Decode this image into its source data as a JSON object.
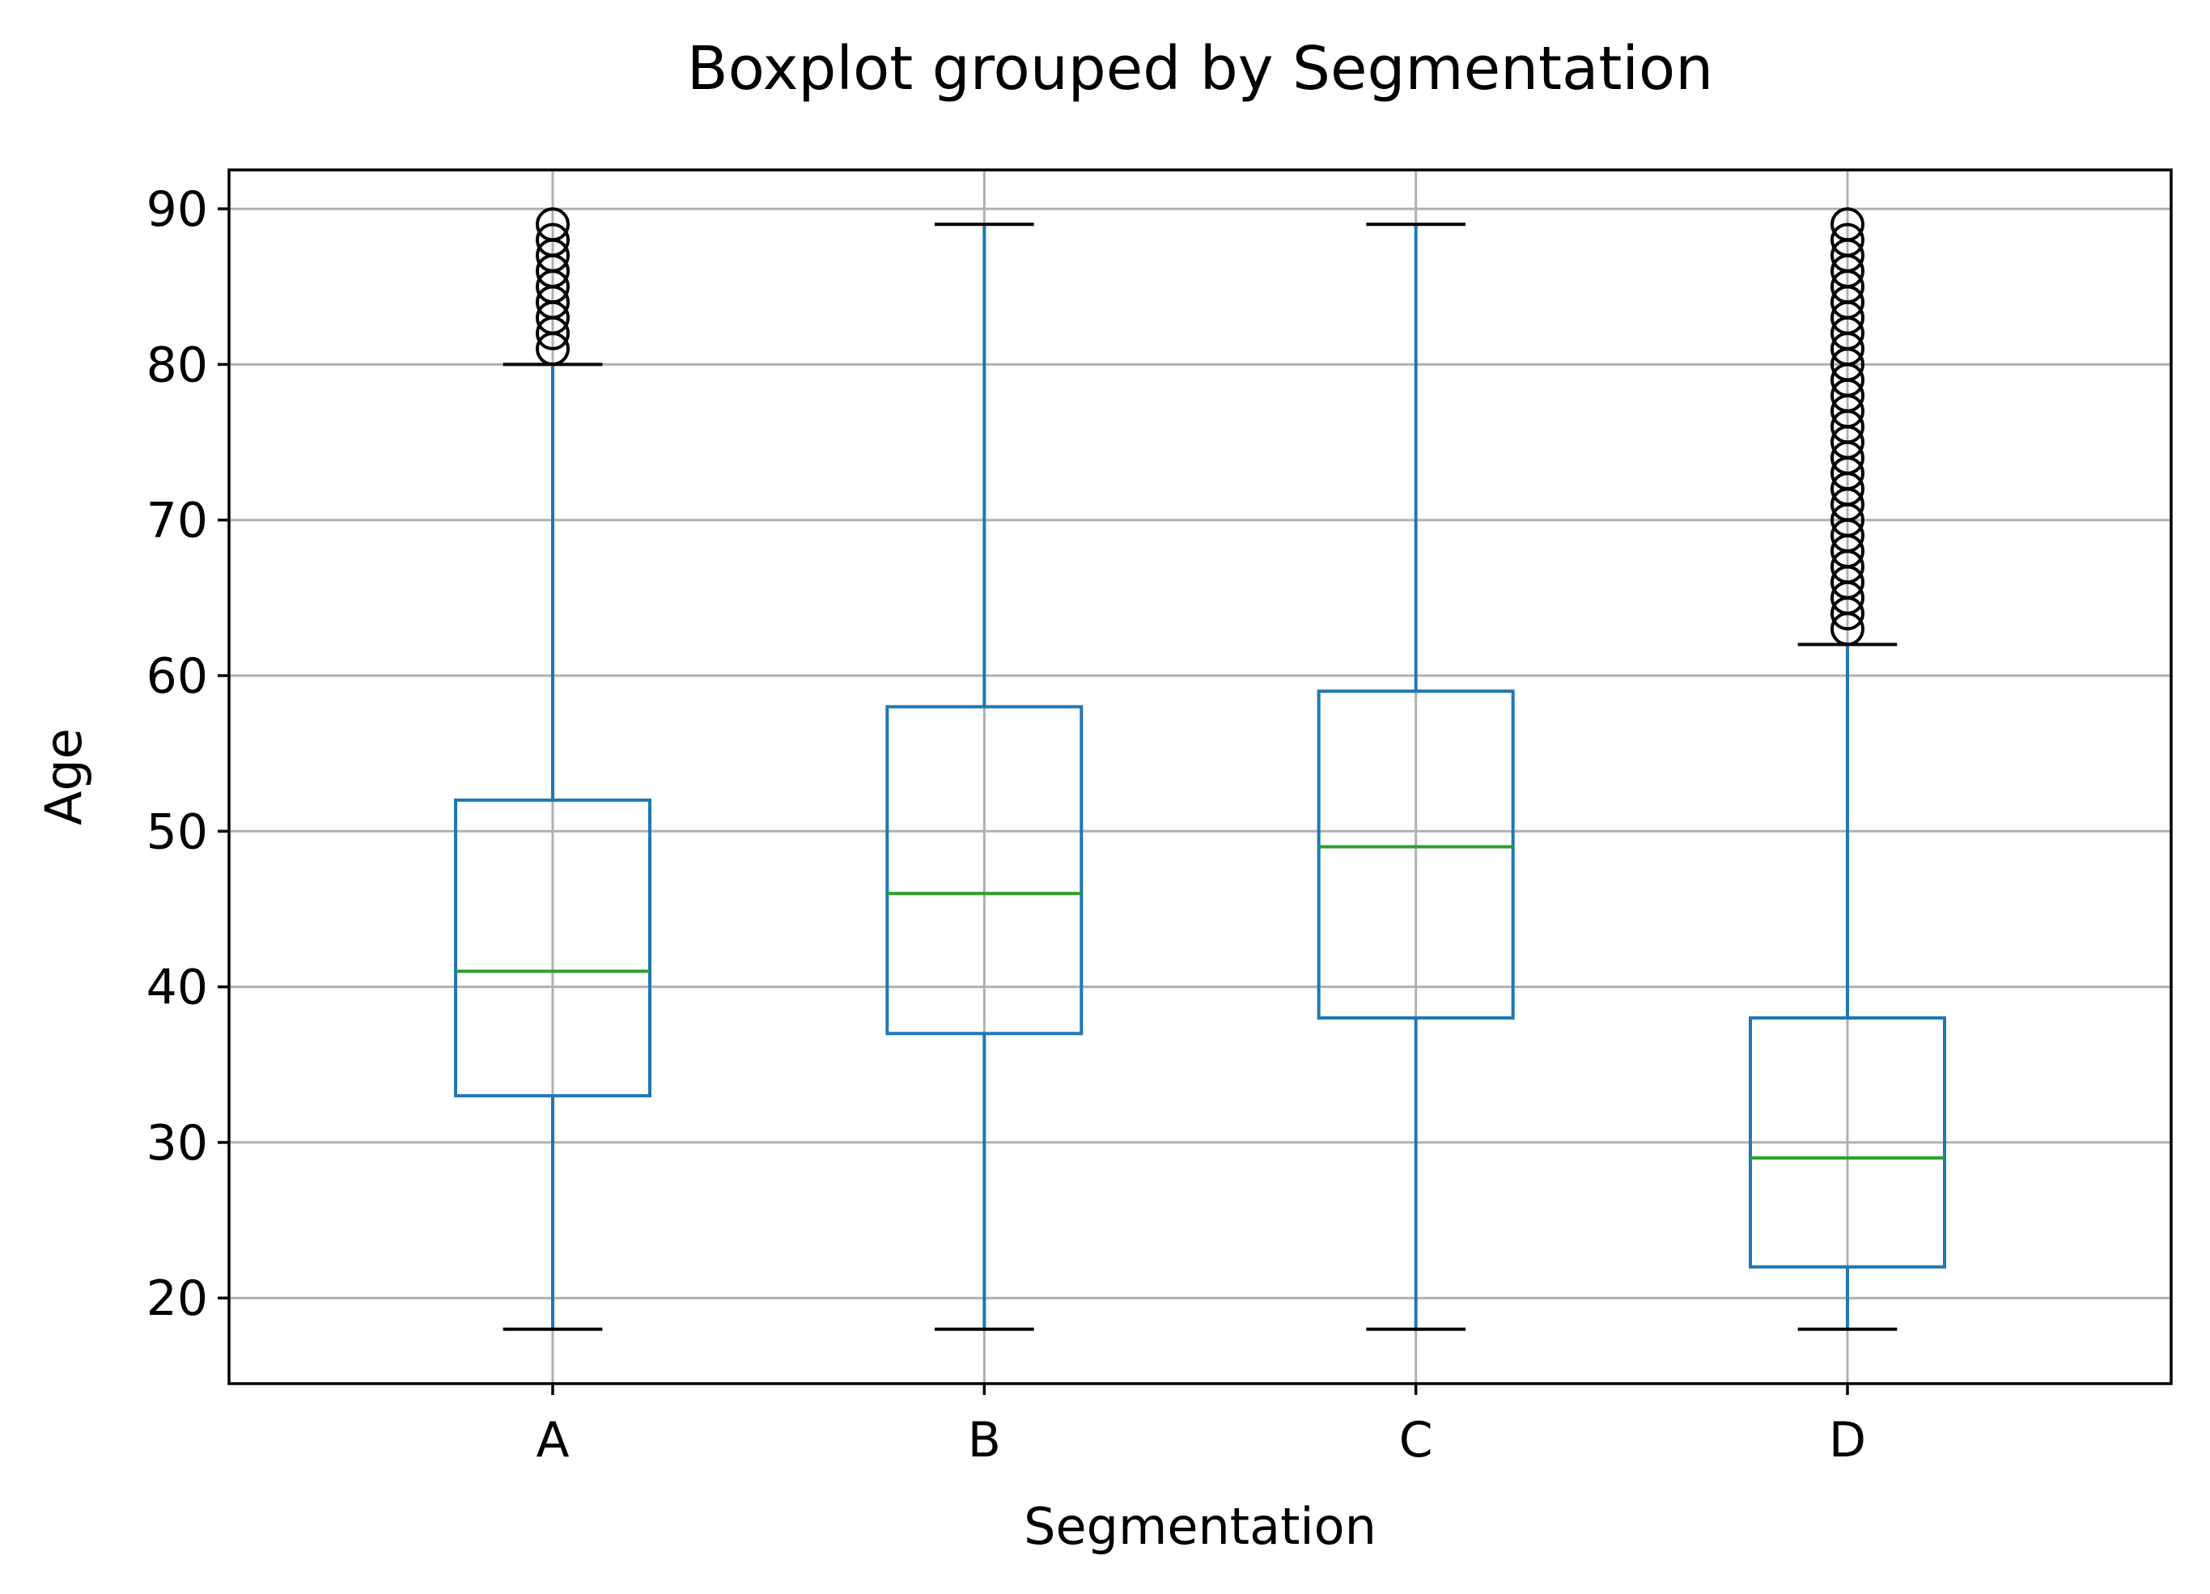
{
  "chart_data": {
    "type": "box",
    "title": "Boxplot grouped by Segmentation",
    "xlabel": "Segmentation",
    "ylabel": "Age",
    "categories": [
      "A",
      "B",
      "C",
      "D"
    ],
    "ylim": [
      14.5,
      92.5
    ],
    "yticks": [
      20,
      30,
      40,
      50,
      60,
      70,
      80,
      90
    ],
    "grid": true,
    "boxes": [
      {
        "category": "A",
        "whisker_low": 18,
        "q1": 33,
        "median": 41,
        "q3": 52,
        "whisker_high": 80,
        "outliers": [
          81,
          82,
          83,
          84,
          85,
          86,
          87,
          88,
          89
        ]
      },
      {
        "category": "B",
        "whisker_low": 18,
        "q1": 37,
        "median": 46,
        "q3": 58,
        "whisker_high": 89,
        "outliers": []
      },
      {
        "category": "C",
        "whisker_low": 18,
        "q1": 38,
        "median": 49,
        "q3": 59,
        "whisker_high": 89,
        "outliers": []
      },
      {
        "category": "D",
        "whisker_low": 18,
        "q1": 22,
        "median": 29,
        "q3": 38,
        "whisker_high": 62,
        "outliers": [
          63,
          64,
          65,
          66,
          67,
          68,
          69,
          70,
          71,
          72,
          73,
          74,
          75,
          76,
          77,
          78,
          79,
          80,
          81,
          82,
          83,
          84,
          85,
          86,
          87,
          88,
          89
        ]
      }
    ],
    "colors": {
      "box": "#1f77b4",
      "median": "#2ca02c",
      "caps": "#000000",
      "outliers": "#000000",
      "grid": "#b0b0b0"
    }
  }
}
